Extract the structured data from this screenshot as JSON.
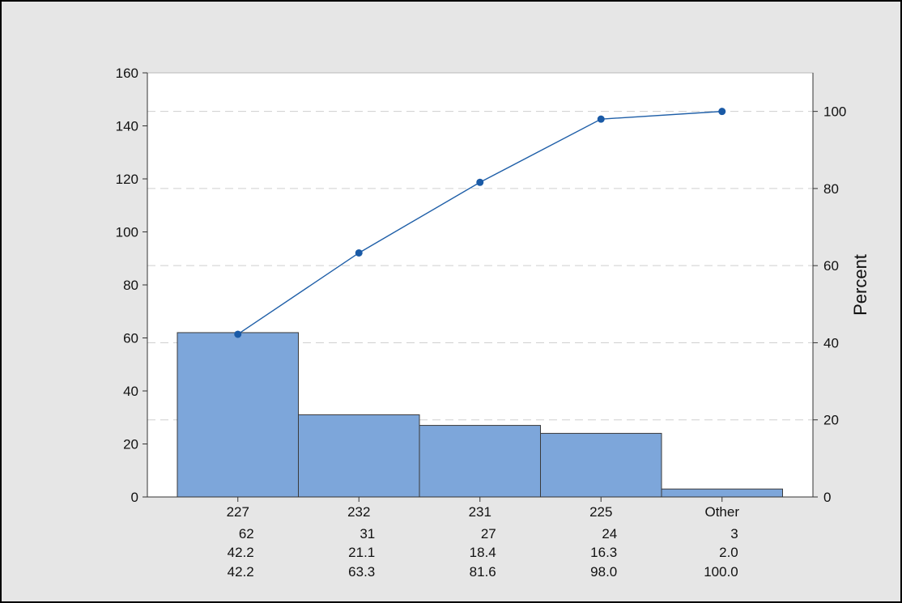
{
  "chart_data": {
    "type": "pareto",
    "categories": [
      "227",
      "232",
      "231",
      "225",
      "Other"
    ],
    "counts": [
      62,
      31,
      27,
      24,
      3
    ],
    "percent": [
      42.2,
      21.1,
      18.4,
      16.3,
      2.0
    ],
    "cumulative_percent": [
      42.2,
      63.3,
      81.6,
      98.0,
      100.0
    ],
    "counts_display": [
      "62",
      "31",
      "27",
      "24",
      "3"
    ],
    "percent_display": [
      "42.2",
      "21.1",
      "18.4",
      "16.3",
      "2.0"
    ],
    "cumulative_display": [
      "42.2",
      "63.3",
      "81.6",
      "98.0",
      "100.0"
    ],
    "left_axis": {
      "range": [
        0,
        160
      ],
      "ticks": [
        0,
        20,
        40,
        60,
        80,
        100,
        120,
        140,
        160
      ]
    },
    "right_axis": {
      "label": "Percent",
      "range": [
        0,
        110
      ],
      "ticks": [
        0,
        20,
        40,
        60,
        80,
        100
      ]
    },
    "grid": "dashed at right-axis ticks",
    "colors": {
      "bar_fill": "#7da6da",
      "bar_stroke": "#3a3a3a",
      "line": "#1f5fa8",
      "marker": "#1a5aa6",
      "grid": "#cfcfcf",
      "plot_bg": "#ffffff",
      "page_bg": "#e6e6e6"
    }
  }
}
